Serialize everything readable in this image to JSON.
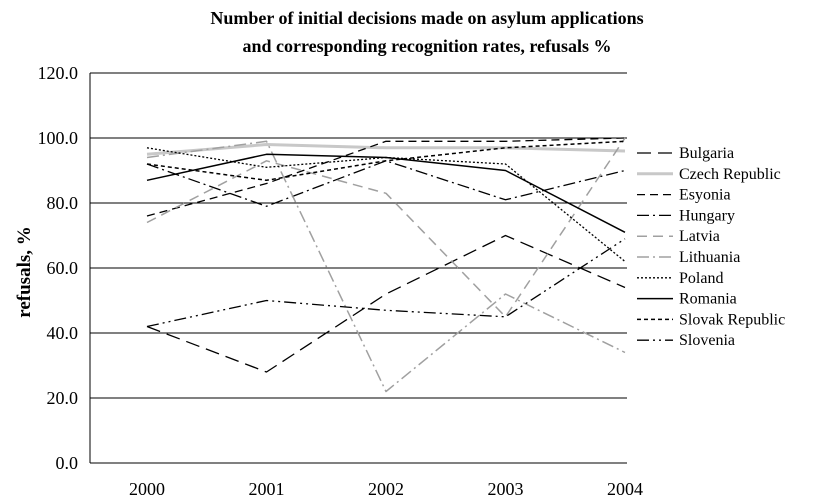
{
  "chart_data": {
    "type": "line",
    "title_line1": "Number of initial decisions made on asylum applications",
    "title_line2": "and corresponding recognition rates, refusals %",
    "ylabel": "refusals, %",
    "xlabel": "",
    "x": [
      "2000",
      "2001",
      "2002",
      "2003",
      "2004"
    ],
    "ylim": [
      0,
      120
    ],
    "yticks": [
      "0.0",
      "20.0",
      "40.0",
      "60.0",
      "80.0",
      "100.0",
      "120.0"
    ],
    "ytick_values": [
      0,
      20,
      40,
      60,
      80,
      100,
      120
    ],
    "grid": "horizontal",
    "legend_position": "right",
    "series": [
      {
        "name": "Bulgaria",
        "values": [
          42,
          28,
          52,
          70,
          54
        ],
        "color": "#000000",
        "dash": "14,7",
        "width": 1.3
      },
      {
        "name": "Czech Republic",
        "values": [
          95,
          98,
          97,
          97,
          96
        ],
        "color": "#c8c8c8",
        "dash": "",
        "width": 3
      },
      {
        "name": "Esyonia",
        "values": [
          76,
          86,
          99,
          99,
          100
        ],
        "color": "#000000",
        "dash": "8,5",
        "width": 1.3
      },
      {
        "name": "Hungary",
        "values": [
          92,
          79,
          93,
          81,
          90
        ],
        "color": "#000000",
        "dash": "12,4,2,4",
        "width": 1.3
      },
      {
        "name": "Latvia",
        "values": [
          74,
          93,
          83,
          45,
          100
        ],
        "color": "#a0a0a0",
        "dash": "10,6",
        "width": 1.5
      },
      {
        "name": "Lithuania",
        "values": [
          94,
          99,
          22,
          52,
          34
        ],
        "color": "#a0a0a0",
        "dash": "12,4,2,4",
        "width": 1.5
      },
      {
        "name": "Poland",
        "values": [
          97,
          91,
          94,
          92,
          62
        ],
        "color": "#000000",
        "dash": "2,2",
        "width": 1.3
      },
      {
        "name": "Romania",
        "values": [
          87,
          95,
          94,
          90,
          71
        ],
        "color": "#000000",
        "dash": "",
        "width": 1.5
      },
      {
        "name": "Slovak Republic",
        "values": [
          92,
          87,
          93,
          97,
          99
        ],
        "color": "#000000",
        "dash": "4,3",
        "width": 1.5
      },
      {
        "name": "Slovenia",
        "values": [
          42,
          50,
          47,
          45,
          69
        ],
        "color": "#000000",
        "dash": "12,4,2,4,2,4",
        "width": 1.3
      }
    ]
  }
}
